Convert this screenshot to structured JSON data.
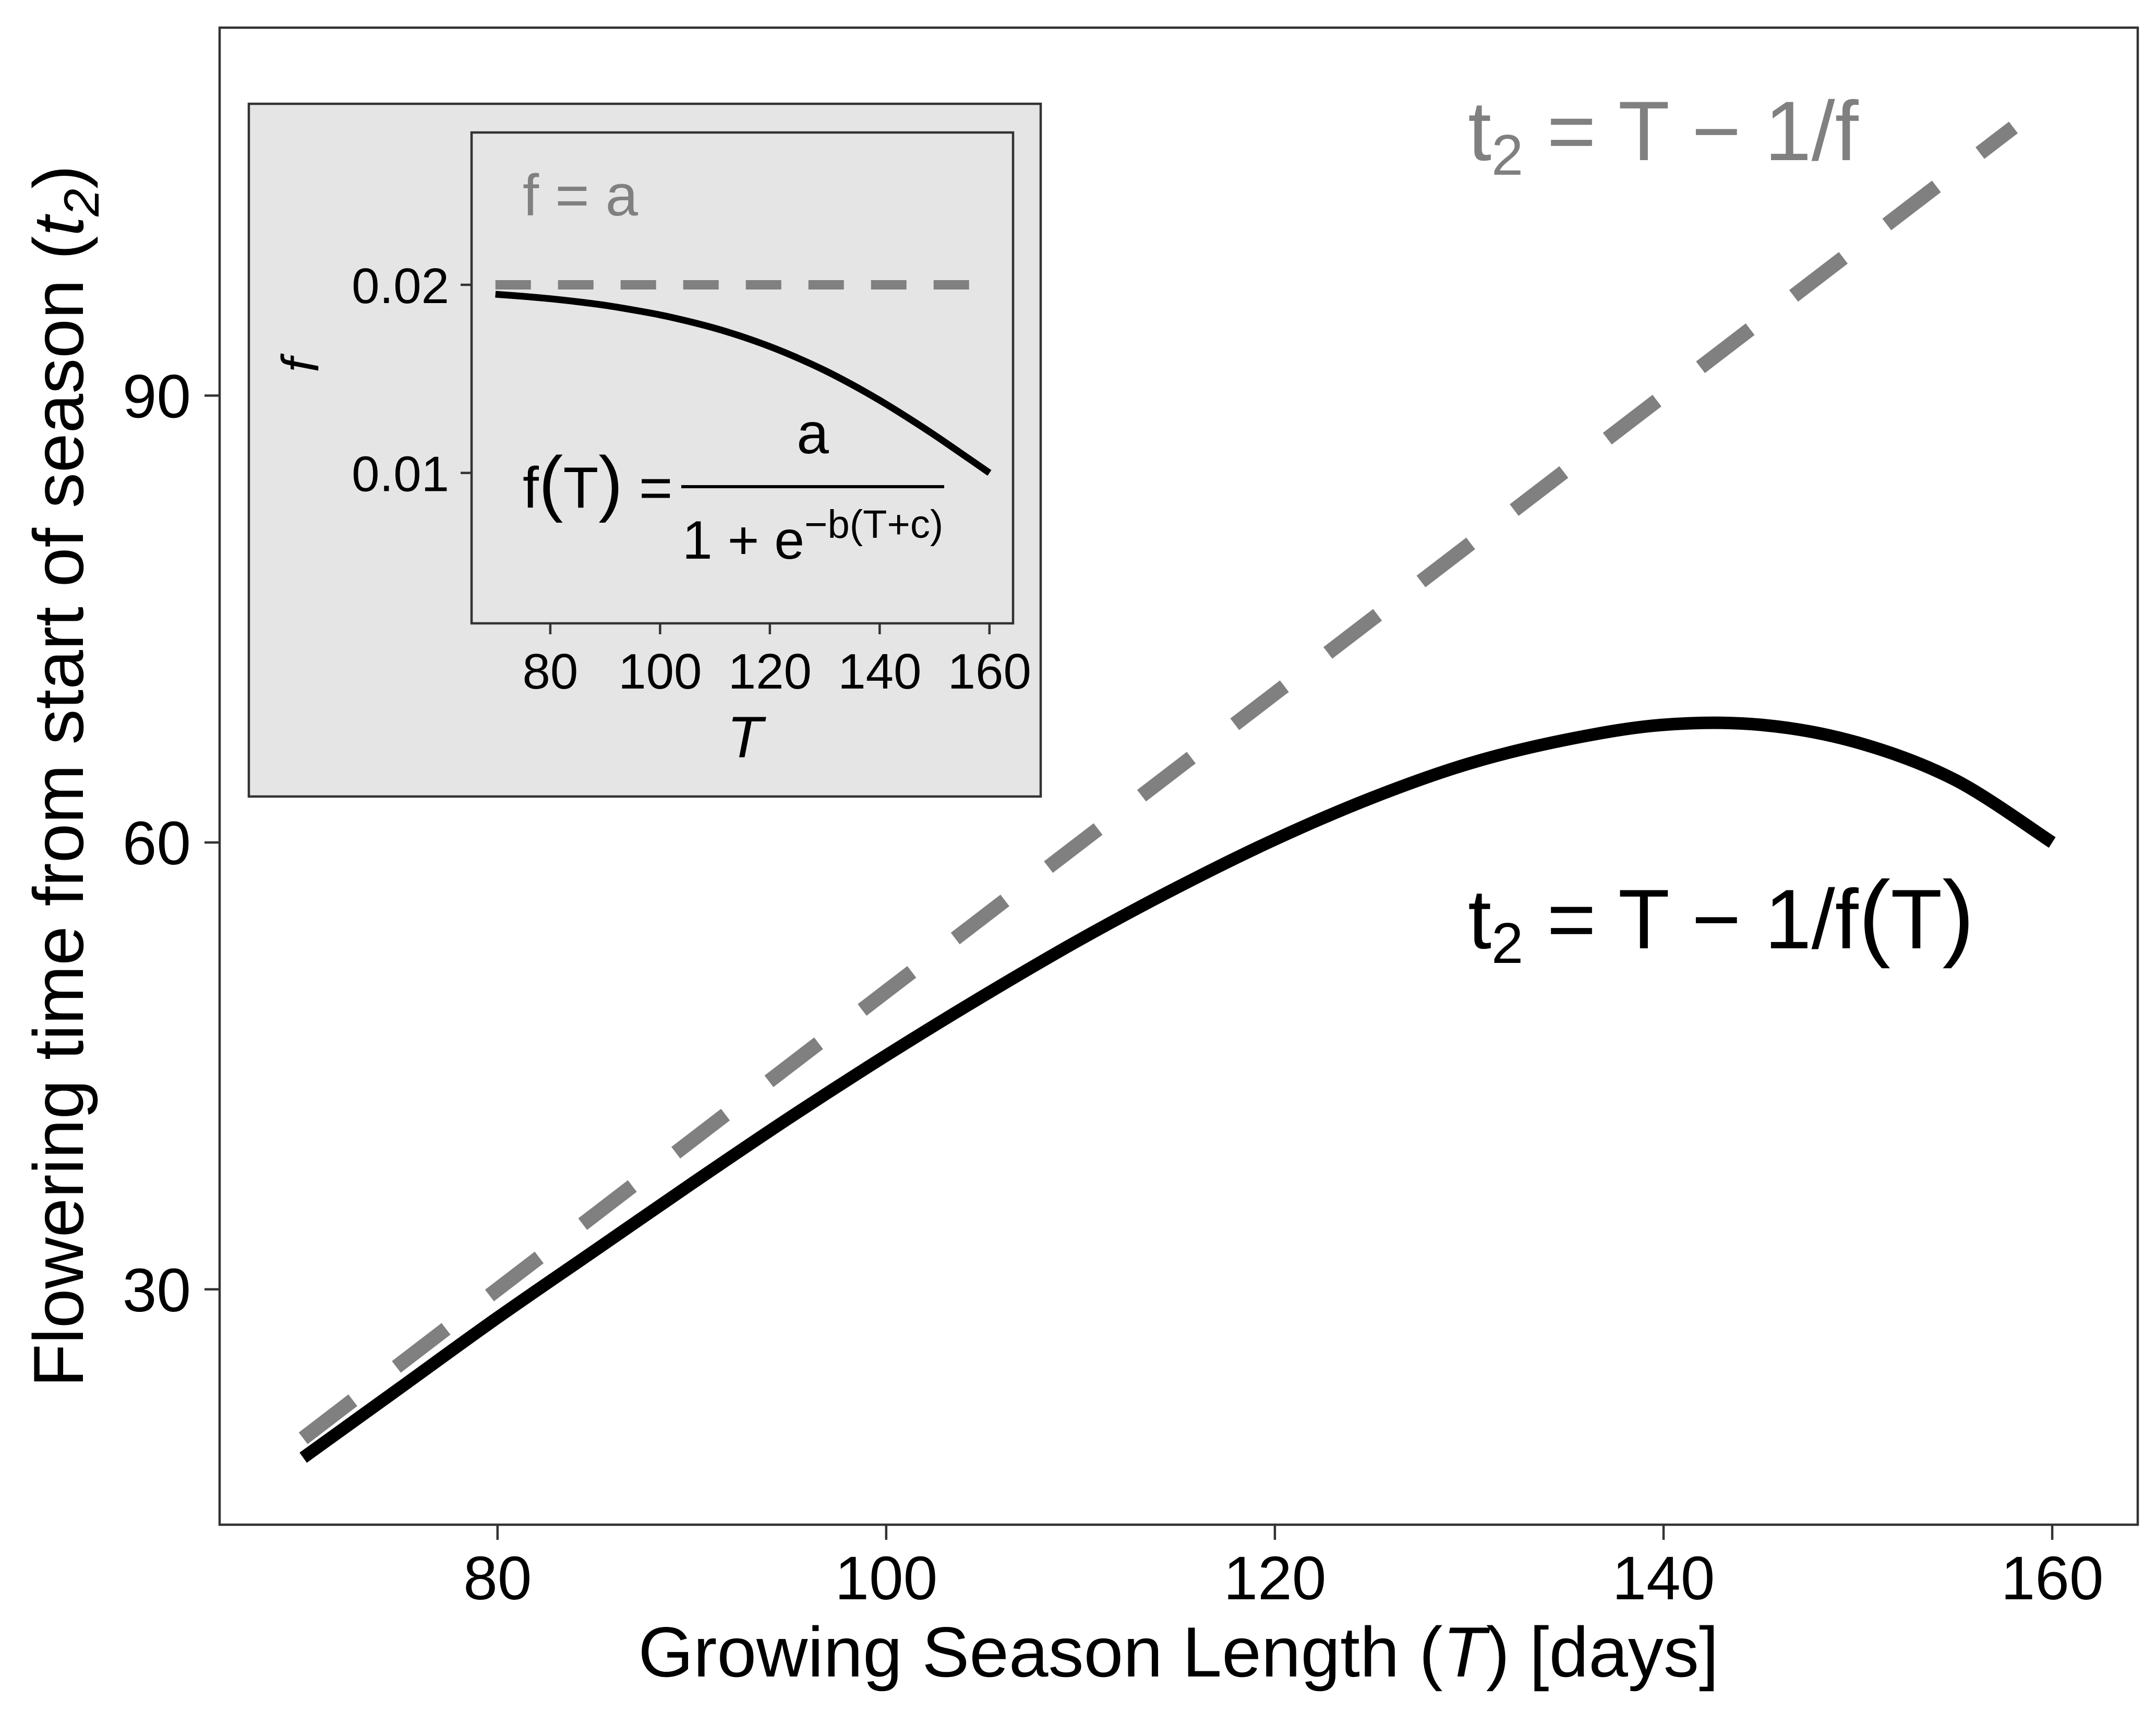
{
  "chart_data": [
    {
      "type": "line",
      "xlabel": {
        "pre": "Growing Season Length (",
        "var": "T",
        "post": ") [days]"
      },
      "ylabel": {
        "pre": "Flowering time from start of season (",
        "var": "t",
        "sub": "2",
        "post": ")"
      },
      "xlim": [
        65.7,
        164.4
      ],
      "ylim": [
        14.2,
        114.7
      ],
      "xticks": [
        80,
        100,
        120,
        140,
        160
      ],
      "yticks": [
        30,
        60,
        90
      ],
      "grid": false,
      "series": [
        {
          "dashed": true,
          "color": "#808080",
          "x": [
            70,
            158
          ],
          "y": [
            20,
            108
          ]
        },
        {
          "dashed": false,
          "color": "#000000",
          "x": [
            70,
            75,
            80,
            85,
            90,
            95,
            100,
            105,
            110,
            115,
            120,
            125,
            130,
            135,
            140,
            145,
            150,
            155,
            160
          ],
          "y": [
            18.7,
            23.4,
            28.1,
            32.6,
            37.1,
            41.5,
            45.7,
            49.7,
            53.5,
            57.0,
            60.2,
            63.0,
            65.3,
            66.9,
            67.9,
            67.9,
            66.7,
            64.2,
            60.0
          ]
        }
      ],
      "annotations": [
        {
          "color": "#808080",
          "lhs": "t",
          "sub": "2",
          "rhs": " = T − 1/f"
        },
        {
          "color": "#000000",
          "lhs": "t",
          "sub": "2",
          "rhs": " = T − 1/f",
          "open": "(",
          "arg": "T",
          "close": ")"
        }
      ]
    },
    {
      "type": "line",
      "inset": true,
      "background": "#e5e5e5",
      "xlabel": "T",
      "ylabel": "f",
      "xlim": [
        65.66,
        164.3
      ],
      "ylim": [
        0.002,
        0.0281
      ],
      "xticks": [
        80,
        100,
        120,
        140,
        160
      ],
      "yticks": [
        0.01,
        0.02
      ],
      "grid": false,
      "series": [
        {
          "dashed": true,
          "color": "#808080",
          "x": [
            70,
            158
          ],
          "y": [
            0.02,
            0.02
          ]
        },
        {
          "dashed": false,
          "color": "#000000",
          "x": [
            70,
            75,
            80,
            85,
            90,
            95,
            100,
            105,
            110,
            115,
            120,
            125,
            130,
            135,
            140,
            145,
            150,
            155,
            160
          ],
          "y": [
            0.0195,
            0.01939,
            0.01926,
            0.0191,
            0.01891,
            0.01867,
            0.0184,
            0.01807,
            0.01769,
            0.01724,
            0.01672,
            0.01612,
            0.01545,
            0.01469,
            0.01386,
            0.01296,
            0.01201,
            0.01101,
            0.01
          ]
        }
      ],
      "annotations": {
        "reference": {
          "color": "#808080",
          "text": "f = a"
        },
        "formula": {
          "lhs": "f",
          "open": "(",
          "arg": "T",
          "close": ")",
          "eq": " =",
          "numerator": "a",
          "denominator": "1 + e",
          "exponent": "−b(T+c)"
        }
      }
    }
  ]
}
